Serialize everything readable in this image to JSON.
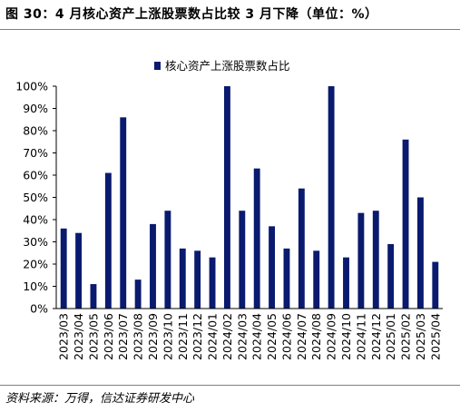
{
  "figure": {
    "title": "图 30：4 月核心资产上涨股票数占比较 3 月下降（单位：%）",
    "source": "资料来源：万得，信达证券研发中心"
  },
  "colors": {
    "bar": "#0a1a6e",
    "axis": "#000000",
    "rule": "#7f7f7f"
  },
  "chart_data": {
    "type": "bar",
    "title": "",
    "xlabel": "",
    "ylabel": "",
    "ylim": [
      0,
      100
    ],
    "yticks": [
      0,
      10,
      20,
      30,
      40,
      50,
      60,
      70,
      80,
      90,
      100
    ],
    "ytick_format": "percent",
    "grid": false,
    "legend": "top-center",
    "categories": [
      "2023/03",
      "2023/04",
      "2023/05",
      "2023/06",
      "2023/07",
      "2023/08",
      "2023/09",
      "2023/10",
      "2023/11",
      "2023/12",
      "2024/01",
      "2024/02",
      "2024/03",
      "2024/04",
      "2024/05",
      "2024/06",
      "2024/07",
      "2024/08",
      "2024/09",
      "2024/10",
      "2024/11",
      "2024/12",
      "2025/01",
      "2025/02",
      "2025/03",
      "2025/04"
    ],
    "series": [
      {
        "name": "核心资产上涨股票数占比",
        "values": [
          36,
          34,
          11,
          61,
          86,
          13,
          38,
          44,
          27,
          26,
          23,
          100,
          44,
          63,
          37,
          27,
          54,
          26,
          100,
          23,
          43,
          44,
          29,
          76,
          50,
          21
        ]
      }
    ]
  }
}
